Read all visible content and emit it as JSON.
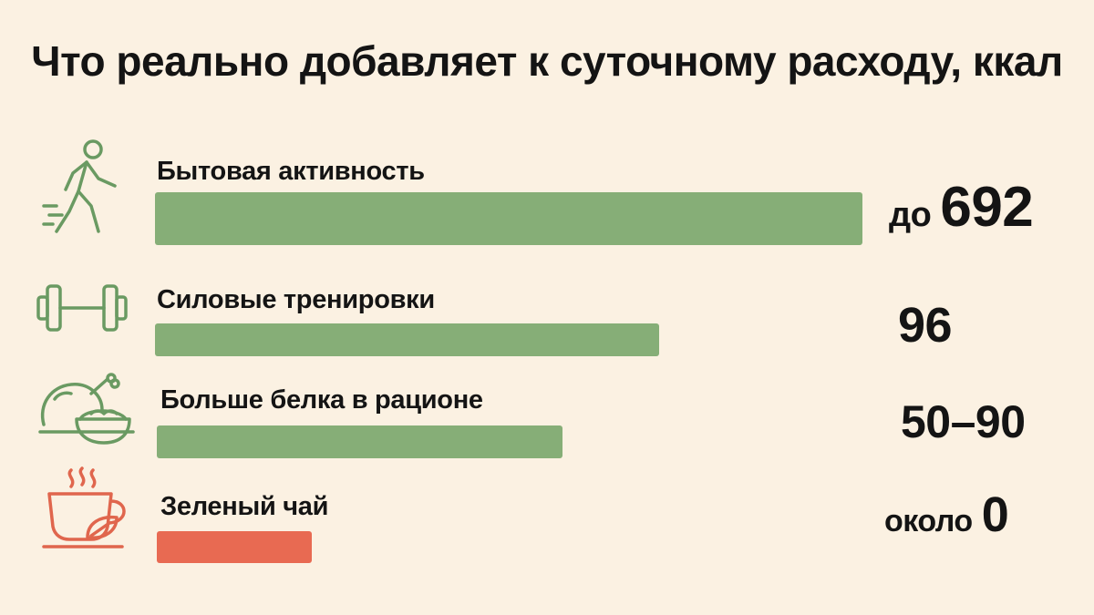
{
  "chart_data": {
    "type": "bar",
    "orientation": "horizontal",
    "title": "Что реально добавляет к суточному расходу, ккал",
    "categories": [
      "Бытовая активность",
      "Силовые тренировки",
      "Больше белка в рационе",
      "Зеленый чай"
    ],
    "values": [
      692,
      96,
      90,
      0
    ],
    "value_labels": [
      {
        "prefix": "до",
        "number": "692"
      },
      {
        "prefix": "",
        "number": "96"
      },
      {
        "prefix": "",
        "number": "50–90"
      },
      {
        "prefix": "около",
        "number": "0"
      }
    ],
    "bar_colors": [
      "#86ae77",
      "#86ae77",
      "#86ae77",
      "#e86a52"
    ],
    "icons": [
      "walking-person-icon",
      "dumbbell-icon",
      "chicken-and-bowl-icon",
      "tea-cup-icon"
    ],
    "icon_colors": [
      "#6a9a62",
      "#6a9a62",
      "#6a9a62",
      "#e0664d"
    ],
    "grid": false,
    "legend": "none"
  }
}
